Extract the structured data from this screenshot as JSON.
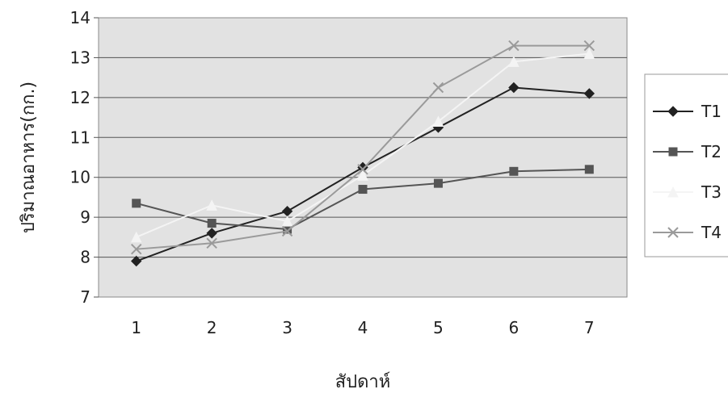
{
  "chart_data": {
    "type": "line",
    "title": "",
    "xlabel": "สัปดาห์",
    "ylabel": "ปริมาณอาหาร(กก.)",
    "categories": [
      "1",
      "2",
      "3",
      "4",
      "5",
      "6",
      "7"
    ],
    "ylim": [
      7,
      14
    ],
    "yticks": [
      "7",
      "8",
      "9",
      "10",
      "11",
      "12",
      "13",
      "14"
    ],
    "grid": true,
    "legend_position": "right",
    "series": [
      {
        "name": "T1",
        "values": [
          7.9,
          8.6,
          9.15,
          10.25,
          11.25,
          12.25,
          12.1
        ],
        "color": "#222222",
        "marker": "diamond"
      },
      {
        "name": "T2",
        "values": [
          9.35,
          8.85,
          8.7,
          9.7,
          9.85,
          10.15,
          10.2
        ],
        "color": "#555555",
        "marker": "square"
      },
      {
        "name": "T3",
        "values": [
          8.5,
          9.3,
          8.9,
          10.05,
          11.4,
          12.9,
          13.1
        ],
        "color": "#f4f4f4",
        "marker": "triangle"
      },
      {
        "name": "T4",
        "values": [
          8.2,
          8.35,
          8.65,
          10.2,
          12.25,
          13.3,
          13.3
        ],
        "color": "#9a9a9a",
        "marker": "x"
      }
    ]
  }
}
